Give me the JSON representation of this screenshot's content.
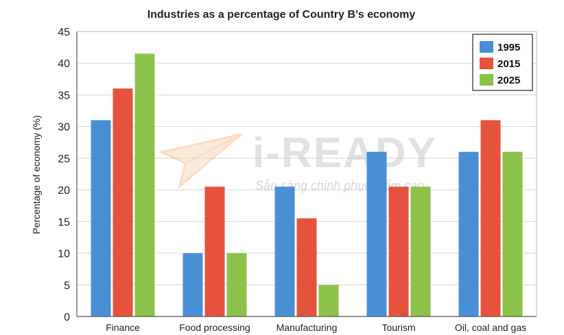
{
  "chart_data": {
    "type": "bar",
    "title": "Industries as a percentage of Country B’s economy",
    "xlabel": "",
    "ylabel": "Percentage of economy (%)",
    "ylim": [
      0,
      45
    ],
    "yticks": [
      0,
      5,
      10,
      15,
      20,
      25,
      30,
      35,
      40,
      45
    ],
    "grid": true,
    "legend_position": "top-right",
    "categories": [
      "Finance",
      "Food processing",
      "Manufacturing",
      "Tourism",
      "Oil, coal and gas"
    ],
    "series": [
      {
        "name": "1995",
        "color": "#4a8fd6",
        "values": [
          31,
          10,
          20.5,
          26,
          26
        ]
      },
      {
        "name": "2015",
        "color": "#e5533d",
        "values": [
          36,
          20.5,
          15.5,
          20.5,
          31
        ]
      },
      {
        "name": "2025",
        "color": "#8cc24a",
        "values": [
          41.5,
          10,
          5,
          20.5,
          26
        ]
      }
    ]
  },
  "watermark": {
    "brand": "i-READY",
    "tagline": "Sẵn sàng chinh phục điểm cao",
    "logo_icon": "paper-plane-icon"
  }
}
